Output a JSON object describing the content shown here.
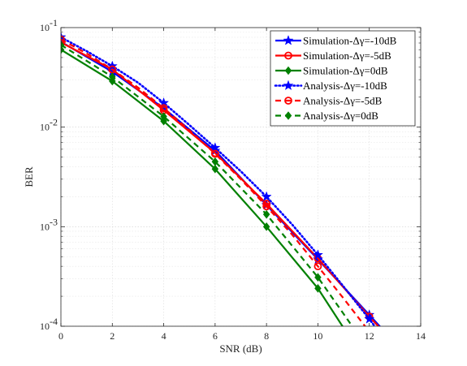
{
  "chart_data": {
    "type": "line",
    "xlabel": "SNR (dB)",
    "ylabel": "BER",
    "xlim": [
      0,
      14
    ],
    "ylim": [
      0.0001,
      0.1
    ],
    "yscale": "log",
    "grid": true,
    "legend_position": "top-right",
    "x_ticks": [
      "0",
      "2",
      "4",
      "6",
      "8",
      "10",
      "12",
      "14"
    ],
    "y_ticks": [
      {
        "value": 0.1,
        "base": "10",
        "exp": "-1"
      },
      {
        "value": 0.01,
        "base": "10",
        "exp": "-2"
      },
      {
        "value": 0.001,
        "base": "10",
        "exp": "-3"
      },
      {
        "value": 0.0001,
        "base": "10",
        "exp": "-4"
      }
    ],
    "series": [
      {
        "name": "Simulation-Δγ=-10dB",
        "color": "#0000ff",
        "line": "solid",
        "marker": "star",
        "x": [
          0,
          2,
          4,
          6,
          8,
          10,
          12,
          13
        ],
        "y": [
          0.072,
          0.036,
          0.0155,
          0.0058,
          0.00165,
          0.00047,
          0.00013,
          6.8e-05
        ]
      },
      {
        "name": "Simulation-Δγ=-5dB",
        "color": "#ff0000",
        "line": "solid",
        "marker": "circle",
        "x": [
          0,
          2,
          4,
          6,
          8,
          10,
          12,
          12.7
        ],
        "y": [
          0.071,
          0.038,
          0.0148,
          0.0055,
          0.0017,
          0.00048,
          0.000125,
          8e-05
        ]
      },
      {
        "name": "Simulation-Δγ=0dB",
        "color": "#008000",
        "line": "solid",
        "marker": "diamond",
        "x": [
          0,
          2,
          4,
          6,
          8,
          10,
          11.2
        ],
        "y": [
          0.06,
          0.029,
          0.0115,
          0.0038,
          0.001,
          0.00024,
          8e-05
        ]
      },
      {
        "name": "Analysis-Δγ=-10dB",
        "color": "#0000ff",
        "line": "dotted",
        "marker": "star",
        "x": [
          0,
          1,
          2,
          3,
          4,
          5,
          6,
          7,
          8,
          9,
          10,
          11,
          12,
          13
        ],
        "y": [
          0.08,
          0.058,
          0.041,
          0.028,
          0.0175,
          0.0105,
          0.0062,
          0.0036,
          0.002,
          0.00105,
          0.00052,
          0.00025,
          0.000118,
          5.4e-05
        ]
      },
      {
        "name": "Analysis-Δγ=-5dB",
        "color": "#ff0000",
        "line": "dashed",
        "marker": "circle",
        "x": [
          0,
          1,
          2,
          3,
          4,
          5,
          6,
          7,
          8,
          9,
          10,
          11,
          12,
          13
        ],
        "y": [
          0.076,
          0.055,
          0.038,
          0.025,
          0.0155,
          0.0093,
          0.0054,
          0.003,
          0.0016,
          0.00083,
          0.0004,
          0.00019,
          8.8e-05,
          4e-05
        ]
      },
      {
        "name": "Analysis-Δγ=0dB",
        "color": "#008000",
        "line": "dashed",
        "marker": "diamond",
        "x": [
          0,
          2,
          4,
          6,
          8,
          10,
          11.6
        ],
        "y": [
          0.067,
          0.032,
          0.0128,
          0.0045,
          0.00133,
          0.00031,
          8e-05
        ]
      }
    ]
  }
}
